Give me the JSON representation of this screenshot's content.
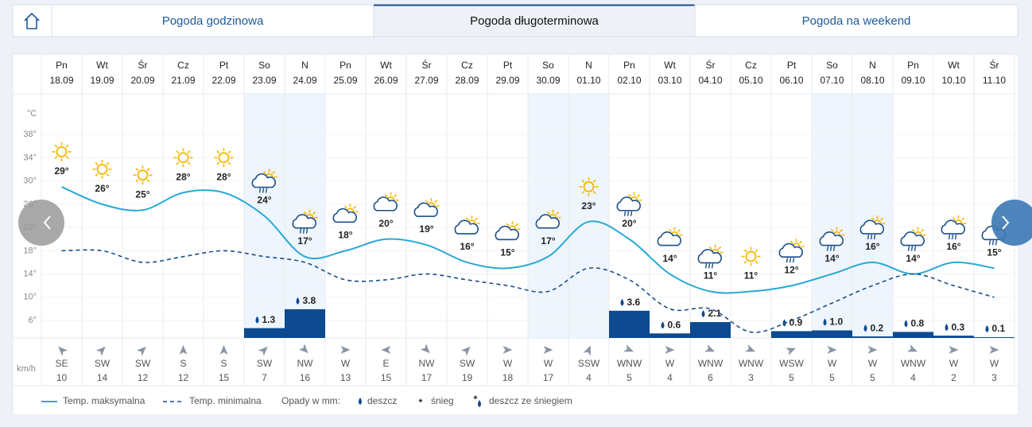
{
  "tabs": {
    "items": [
      "Pogoda godzinowa",
      "Pogoda długoterminowa",
      "Pogoda na weekend"
    ],
    "active": 1
  },
  "chart_data": {
    "type": "line",
    "weekdays": [
      "Pn",
      "Wt",
      "Śr",
      "Cz",
      "Pt",
      "So",
      "N",
      "Pn",
      "Wt",
      "Śr",
      "Cz",
      "Pt",
      "So",
      "N",
      "Pn",
      "Wt",
      "Śr",
      "Cz",
      "Pt",
      "So",
      "N",
      "Pn",
      "Wt",
      "Śr"
    ],
    "categories": [
      "18.09",
      "19.09",
      "20.09",
      "21.09",
      "22.09",
      "23.09",
      "24.09",
      "25.09",
      "26.09",
      "27.09",
      "28.09",
      "29.09",
      "30.09",
      "01.10",
      "02.10",
      "03.10",
      "04.10",
      "05.10",
      "06.10",
      "07.10",
      "08.10",
      "09.10",
      "10.10",
      "11.10"
    ],
    "y_unit": "°C",
    "ylim": [
      3,
      45
    ],
    "yticks": [
      {
        "value": 38,
        "label": "38°"
      },
      {
        "value": 34,
        "label": "34°"
      },
      {
        "value": 30,
        "label": "30°"
      },
      {
        "value": 26,
        "label": "26°"
      },
      {
        "value": 22,
        "label": "22°"
      },
      {
        "value": 18,
        "label": "18°"
      },
      {
        "value": 14,
        "label": "14°"
      },
      {
        "value": 10,
        "label": "10°"
      },
      {
        "value": 6,
        "label": "6°"
      }
    ],
    "grid": true,
    "series": [
      {
        "name": "Temp. maksymalna",
        "color": "#2aa8d4",
        "values": [
          29,
          26,
          25,
          28,
          28,
          24,
          17,
          18,
          20,
          19,
          16,
          15,
          17,
          23,
          20,
          14,
          11,
          11,
          12,
          14,
          16,
          14,
          16,
          15
        ],
        "value_labels": [
          "29°",
          "26°",
          "25°",
          "28°",
          "28°",
          "24°",
          "17°",
          "18°",
          "20°",
          "19°",
          "16°",
          "15°",
          "17°",
          "23°",
          "20°",
          "14°",
          "11°",
          "11°",
          "12°",
          "14°",
          "16°",
          "14°",
          "16°",
          "15°"
        ]
      },
      {
        "name": "Temp. minimalna",
        "color": "#1b4f8a",
        "dashed": true,
        "values": [
          18,
          18,
          16,
          17,
          18,
          17,
          16,
          13,
          13,
          14,
          13,
          12,
          11,
          15,
          13,
          8,
          8,
          4,
          6,
          9,
          12,
          14,
          12,
          10
        ]
      }
    ],
    "precipitation": {
      "title": "Opady w mm:",
      "color": "#0d4a8f",
      "values": [
        null,
        null,
        null,
        null,
        null,
        1.3,
        3.8,
        null,
        null,
        null,
        null,
        null,
        null,
        null,
        3.6,
        0.6,
        2.1,
        null,
        0.9,
        1.0,
        0.2,
        0.8,
        0.3,
        0.1
      ],
      "value_labels": [
        null,
        null,
        null,
        null,
        null,
        "1.3",
        "3.8",
        null,
        null,
        null,
        null,
        null,
        null,
        null,
        "3.6",
        "0.6",
        "2.1",
        null,
        "0.9",
        "1.0",
        "0.2",
        "0.8",
        "0.3",
        "0.1"
      ],
      "legend": [
        "deszcz",
        "śnieg",
        "deszcz ze śniegiem"
      ]
    },
    "wind": {
      "unit": "km/h",
      "directions": [
        "SE",
        "SW",
        "SW",
        "S",
        "S",
        "SW",
        "NW",
        "W",
        "E",
        "NW",
        "SW",
        "W",
        "W",
        "SSW",
        "WNW",
        "W",
        "WNW",
        "WNW",
        "WSW",
        "W",
        "W",
        "WNW",
        "W",
        "W"
      ],
      "speeds": [
        10,
        14,
        12,
        12,
        15,
        7,
        16,
        13,
        15,
        17,
        19,
        18,
        17,
        4,
        5,
        4,
        6,
        3,
        5,
        5,
        5,
        4,
        2,
        3
      ]
    }
  }
}
